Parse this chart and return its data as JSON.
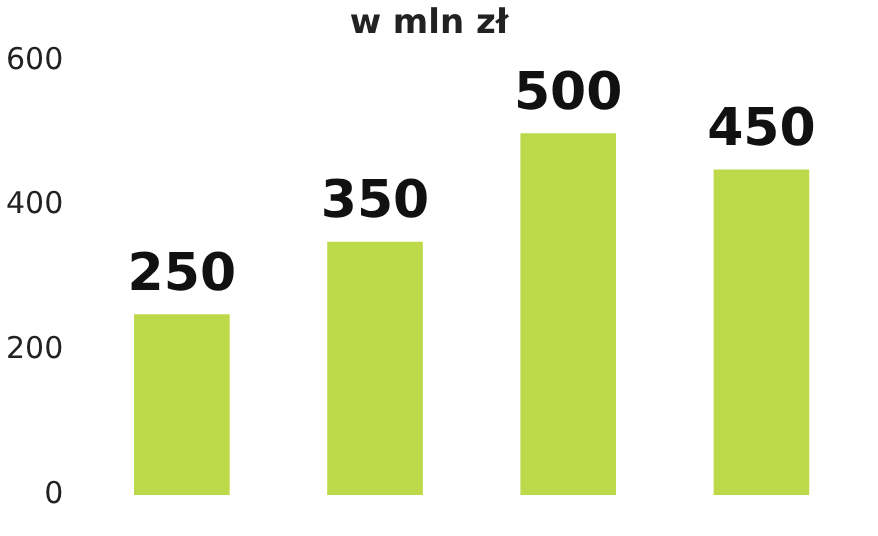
{
  "chart_data": {
    "type": "bar",
    "title": "w mln zł",
    "categories": [
      null,
      null,
      null,
      null
    ],
    "values": [
      250,
      350,
      500,
      450
    ],
    "color": "#bcd94a",
    "ylim": [
      0,
      600
    ],
    "yticks": [
      0,
      200,
      400,
      600
    ],
    "data_labels": true,
    "grid": false,
    "legend": false
  }
}
